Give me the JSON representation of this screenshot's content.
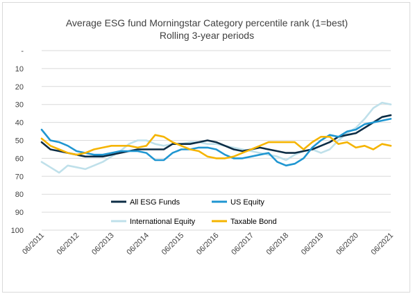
{
  "chart_data": {
    "type": "line",
    "title": "Average ESG fund Morningstar Category percentile rank (1=best)",
    "subtitle": "Rolling 3-year periods",
    "xlabel": "",
    "ylabel": "",
    "y_axis_reversed": true,
    "ylim": [
      0,
      100
    ],
    "y_ticks": [
      "-",
      "10",
      "20",
      "30",
      "40",
      "50",
      "60",
      "70",
      "80",
      "90",
      "100"
    ],
    "x_tick_labels": [
      "06/2011",
      "06/2012",
      "06/2013",
      "06/2014",
      "06/2015",
      "06/2016",
      "06/2017",
      "06/2018",
      "06/2019",
      "06/2020",
      "06/2021"
    ],
    "x_range": [
      "06/2011",
      "06/2021"
    ],
    "grid": "horizontal",
    "legend_position": "bottom-center",
    "series": [
      {
        "name": "All ESG Funds",
        "color": "#0d2d45",
        "x": [
          "06/2011",
          "09/2011",
          "12/2011",
          "03/2012",
          "06/2012",
          "09/2012",
          "12/2012",
          "03/2013",
          "06/2013",
          "09/2013",
          "12/2013",
          "03/2014",
          "06/2014",
          "09/2014",
          "12/2014",
          "03/2015",
          "06/2015",
          "09/2015",
          "12/2015",
          "03/2016",
          "06/2016",
          "09/2016",
          "12/2016",
          "03/2017",
          "06/2017",
          "09/2017",
          "12/2017",
          "03/2018",
          "06/2018",
          "09/2018",
          "12/2018",
          "03/2019",
          "06/2019",
          "09/2019",
          "12/2019",
          "03/2020",
          "06/2020",
          "09/2020",
          "12/2020",
          "03/2021",
          "06/2021"
        ],
        "values": [
          51,
          55,
          56,
          57,
          58,
          59,
          59,
          59,
          58,
          57,
          56,
          55,
          55,
          55,
          55,
          52,
          52,
          52,
          51,
          50,
          51,
          53,
          55,
          56,
          55,
          54,
          55,
          56,
          57,
          57,
          56,
          55,
          53,
          51,
          48,
          47,
          46,
          43,
          40,
          37,
          36
        ]
      },
      {
        "name": "US Equity",
        "color": "#1f96d1",
        "x": [
          "06/2011",
          "09/2011",
          "12/2011",
          "03/2012",
          "06/2012",
          "09/2012",
          "12/2012",
          "03/2013",
          "06/2013",
          "09/2013",
          "12/2013",
          "03/2014",
          "06/2014",
          "09/2014",
          "12/2014",
          "03/2015",
          "06/2015",
          "09/2015",
          "12/2015",
          "03/2016",
          "06/2016",
          "09/2016",
          "12/2016",
          "03/2017",
          "06/2017",
          "09/2017",
          "12/2017",
          "03/2018",
          "06/2018",
          "09/2018",
          "12/2018",
          "03/2019",
          "06/2019",
          "09/2019",
          "12/2019",
          "03/2020",
          "06/2020",
          "09/2020",
          "12/2020",
          "03/2021",
          "06/2021"
        ],
        "values": [
          44,
          50,
          51,
          53,
          56,
          57,
          58,
          58,
          57,
          56,
          56,
          56,
          57,
          61,
          61,
          57,
          55,
          55,
          54,
          54,
          55,
          58,
          60,
          60,
          59,
          58,
          57,
          62,
          64,
          63,
          60,
          54,
          50,
          47,
          48,
          45,
          44,
          41,
          40,
          39,
          38
        ]
      },
      {
        "name": "International Equity",
        "color": "#bfe0ea",
        "x": [
          "06/2011",
          "09/2011",
          "12/2011",
          "03/2012",
          "06/2012",
          "09/2012",
          "12/2012",
          "03/2013",
          "06/2013",
          "09/2013",
          "12/2013",
          "03/2014",
          "06/2014",
          "09/2014",
          "12/2014",
          "03/2015",
          "06/2015",
          "09/2015",
          "12/2015",
          "03/2016",
          "06/2016",
          "09/2016",
          "12/2016",
          "03/2017",
          "06/2017",
          "09/2017",
          "12/2017",
          "03/2018",
          "06/2018",
          "09/2018",
          "12/2018",
          "03/2019",
          "06/2019",
          "09/2019",
          "12/2019",
          "03/2020",
          "06/2020",
          "09/2020",
          "12/2020",
          "03/2021",
          "06/2021"
        ],
        "values": [
          62,
          65,
          68,
          64,
          65,
          66,
          64,
          62,
          59,
          56,
          52,
          50,
          50,
          52,
          53,
          52,
          52,
          51,
          51,
          52,
          52,
          53,
          54,
          55,
          56,
          57,
          58,
          59,
          61,
          58,
          56,
          55,
          57,
          55,
          50,
          46,
          43,
          38,
          32,
          29,
          30
        ]
      },
      {
        "name": "Taxable Bond",
        "color": "#f5b400",
        "x": [
          "06/2011",
          "09/2011",
          "12/2011",
          "03/2012",
          "06/2012",
          "09/2012",
          "12/2012",
          "03/2013",
          "06/2013",
          "09/2013",
          "12/2013",
          "03/2014",
          "06/2014",
          "09/2014",
          "12/2014",
          "03/2015",
          "06/2015",
          "09/2015",
          "12/2015",
          "03/2016",
          "06/2016",
          "09/2016",
          "12/2016",
          "03/2017",
          "06/2017",
          "09/2017",
          "12/2017",
          "03/2018",
          "06/2018",
          "09/2018",
          "12/2018",
          "03/2019",
          "06/2019",
          "09/2019",
          "12/2019",
          "03/2020",
          "06/2020",
          "09/2020",
          "12/2020",
          "03/2021",
          "06/2021"
        ],
        "values": [
          49,
          53,
          55,
          57,
          58,
          57,
          55,
          54,
          53,
          53,
          53,
          54,
          53,
          47,
          48,
          51,
          53,
          55,
          56,
          59,
          60,
          60,
          59,
          57,
          55,
          53,
          51,
          51,
          51,
          51,
          55,
          51,
          48,
          48,
          52,
          51,
          54,
          53,
          55,
          52,
          53
        ]
      }
    ]
  }
}
